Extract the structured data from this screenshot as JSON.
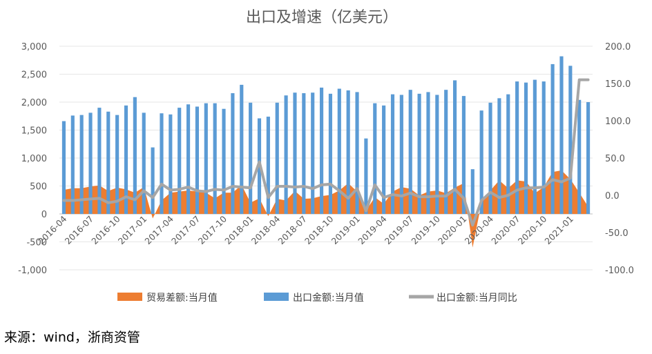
{
  "chart_data": {
    "type": "bar",
    "title": "出口及增速（亿美元）",
    "source": "来源：wind，浙商资管",
    "x": [
      "2016-04",
      "2016-05",
      "2016-06",
      "2016-07",
      "2016-08",
      "2016-09",
      "2016-10",
      "2016-11",
      "2016-12",
      "2017-01",
      "2017-02",
      "2017-03",
      "2017-04",
      "2017-05",
      "2017-06",
      "2017-07",
      "2017-08",
      "2017-09",
      "2017-10",
      "2017-11",
      "2017-12",
      "2018-01",
      "2018-02",
      "2018-03",
      "2018-04",
      "2018-05",
      "2018-06",
      "2018-07",
      "2018-08",
      "2018-09",
      "2018-10",
      "2018-11",
      "2018-12",
      "2019-01",
      "2019-02",
      "2019-03",
      "2019-04",
      "2019-05",
      "2019-06",
      "2019-07",
      "2019-08",
      "2019-09",
      "2019-10",
      "2019-11",
      "2019-12",
      "2020-01",
      "2020-02",
      "2020-03",
      "2020-04",
      "2020-05",
      "2020-06",
      "2020-07",
      "2020-08",
      "2020-09",
      "2020-10",
      "2020-11",
      "2020-12",
      "2021-01",
      "2021-02",
      "2021-03"
    ],
    "x_tick_labels": [
      "2016-04",
      "2016-07",
      "2016-10",
      "2017-01",
      "2017-04",
      "2017-07",
      "2017-10",
      "2018-01",
      "2018-04",
      "2018-07",
      "2018-10",
      "2019-01",
      "2019-04",
      "2019-07",
      "2019-10",
      "2020-01",
      "2020-04",
      "2020-07",
      "2020-10",
      "2021-01"
    ],
    "y_left": {
      "min": -1000,
      "max": 3000,
      "step": 500,
      "tick_labels": [
        "-1,000",
        "-500",
        "0",
        "500",
        "1,000",
        "1,500",
        "2,000",
        "2,500",
        "3,000"
      ]
    },
    "y_right": {
      "min": -100,
      "max": 200,
      "step": 50,
      "tick_labels": [
        "-100.0",
        "-50.0",
        "0.0",
        "50.0",
        "100.0",
        "150.0",
        "200.0"
      ]
    },
    "series": [
      {
        "name": "贸易差额:当月值",
        "type": "area",
        "axis": "left",
        "color": "#ED7D31",
        "values": [
          430,
          460,
          460,
          490,
          510,
          410,
          470,
          440,
          380,
          480,
          -80,
          240,
          380,
          400,
          420,
          400,
          380,
          280,
          380,
          380,
          520,
          200,
          280,
          -40,
          270,
          240,
          410,
          270,
          280,
          320,
          340,
          420,
          550,
          400,
          60,
          300,
          180,
          400,
          480,
          450,
          330,
          400,
          420,
          370,
          470,
          550,
          -600,
          200,
          420,
          600,
          460,
          600,
          580,
          370,
          480,
          750,
          780,
          620,
          380,
          130
        ]
      },
      {
        "name": "出口金额:当月值",
        "type": "bar",
        "axis": "left",
        "color": "#5B9BD5",
        "values": [
          1660,
          1760,
          1770,
          1810,
          1900,
          1830,
          1770,
          1940,
          2090,
          1810,
          1190,
          1800,
          1780,
          1900,
          1960,
          1920,
          1980,
          1980,
          1880,
          2160,
          2310,
          1990,
          1710,
          1740,
          1990,
          2120,
          2170,
          2160,
          2170,
          2260,
          2150,
          2240,
          2210,
          2180,
          1350,
          1980,
          1940,
          2140,
          2130,
          2220,
          2150,
          2180,
          2130,
          2220,
          2390,
          2110,
          800,
          1850,
          1990,
          2070,
          2140,
          2370,
          2350,
          2400,
          2370,
          2680,
          2820,
          2650,
          2040,
          2000
        ]
      },
      {
        "name": "出口金额:当月同比",
        "type": "line",
        "axis": "right",
        "color": "#A6A6A6",
        "values": [
          -7,
          -7,
          -6,
          -5,
          -4,
          -10,
          -8,
          -2,
          -6,
          6,
          -3,
          15,
          7,
          8,
          11,
          6,
          5,
          8,
          7,
          12,
          11,
          10,
          45,
          -3,
          12,
          12,
          11,
          12,
          9,
          14,
          15,
          6,
          -4,
          9,
          -21,
          14,
          -3,
          1,
          -1,
          3,
          -2,
          -2,
          -1,
          -1,
          8,
          -4,
          -40,
          -7,
          4,
          -3,
          0,
          7,
          10,
          10,
          11,
          21,
          18,
          23,
          155,
          155
        ]
      }
    ]
  }
}
